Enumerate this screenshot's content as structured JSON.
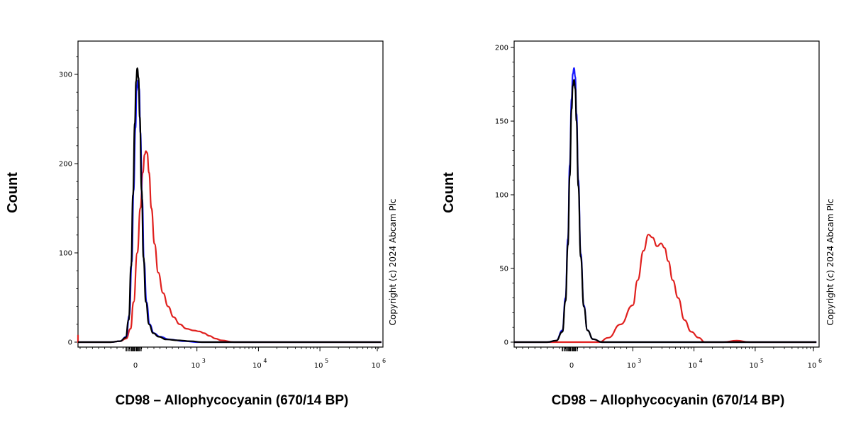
{
  "chart_data": [
    {
      "type": "line",
      "title": "",
      "xlabel": "CD98 – Allophycocyanin (670/14 BP)",
      "ylabel": "Count",
      "copyright": "Copyright (c) 2024 Abcam Plc",
      "x_scale": "biexponential",
      "xlim": [
        -1000,
        1000000
      ],
      "ylim": [
        0,
        340
      ],
      "xticks": [
        {
          "value": 0,
          "base": "0",
          "exp": ""
        },
        {
          "value": 1000,
          "base": "10",
          "exp": "3"
        },
        {
          "value": 10000,
          "base": "10",
          "exp": "4"
        },
        {
          "value": 100000,
          "base": "10",
          "exp": "5"
        },
        {
          "value": 1000000,
          "base": "10",
          "exp": "6"
        }
      ],
      "yticks": [
        0,
        100,
        200,
        300
      ],
      "legend": "none",
      "grid": false,
      "colors": {
        "red": "#e0201e",
        "blue": "#1a1aff",
        "black": "#000000"
      },
      "series": [
        {
          "color": "#e0201e",
          "x": [
            -1000,
            -950,
            -400,
            -250,
            -150,
            -80,
            -30,
            30,
            80,
            120,
            150,
            170,
            190,
            220,
            260,
            310,
            370,
            450,
            530,
            620,
            720,
            830,
            950,
            1100,
            1300,
            1600,
            2000,
            2500,
            4000,
            20000,
            1000000
          ],
          "y": [
            8,
            0,
            0,
            1,
            4,
            15,
            45,
            100,
            150,
            190,
            210,
            214,
            212,
            190,
            150,
            110,
            78,
            55,
            40,
            28,
            20,
            15,
            13,
            12,
            10,
            7,
            4,
            2,
            0,
            0,
            0
          ]
        },
        {
          "color": "#1a1aff",
          "x": [
            -1000,
            -400,
            -250,
            -150,
            -100,
            -60,
            -30,
            0,
            20,
            40,
            60,
            80,
            110,
            140,
            180,
            230,
            300,
            400,
            550,
            800,
            1000,
            1500,
            1000000
          ],
          "y": [
            0,
            0,
            1,
            6,
            30,
            90,
            170,
            240,
            282,
            293,
            284,
            235,
            160,
            90,
            45,
            20,
            10,
            6,
            3,
            1,
            0,
            0,
            0
          ]
        },
        {
          "color": "#000000",
          "x": [
            -1000,
            -400,
            -250,
            -160,
            -110,
            -70,
            -40,
            -10,
            10,
            30,
            50,
            70,
            100,
            130,
            170,
            220,
            290,
            380,
            500,
            700,
            900,
            1200,
            1000000
          ],
          "y": [
            0,
            0,
            1,
            5,
            25,
            85,
            165,
            245,
            292,
            307,
            296,
            252,
            170,
            95,
            45,
            20,
            10,
            6,
            3,
            2,
            1,
            0,
            0
          ]
        }
      ]
    },
    {
      "type": "line",
      "title": "",
      "xlabel": "CD98 – Allophycocyanin (670/14 BP)",
      "ylabel": "Count",
      "copyright": "Copyright (c) 2024 Abcam Plc",
      "x_scale": "biexponential",
      "xlim": [
        -1000,
        1000000
      ],
      "ylim": [
        0,
        205
      ],
      "xticks": [
        {
          "value": 0,
          "base": "0",
          "exp": ""
        },
        {
          "value": 1000,
          "base": "10",
          "exp": "3"
        },
        {
          "value": 10000,
          "base": "10",
          "exp": "4"
        },
        {
          "value": 100000,
          "base": "10",
          "exp": "5"
        },
        {
          "value": 1000000,
          "base": "10",
          "exp": "6"
        }
      ],
      "yticks": [
        0,
        50,
        100,
        150,
        200
      ],
      "legend": "none",
      "grid": false,
      "colors": {
        "red": "#e0201e",
        "blue": "#1a1aff",
        "black": "#000000"
      },
      "series": [
        {
          "color": "#e0201e",
          "x": [
            -1000,
            300,
            450,
            600,
            800,
            1000,
            1200,
            1500,
            1800,
            2100,
            2500,
            2900,
            3300,
            3800,
            4500,
            5500,
            7000,
            9000,
            12000,
            15000,
            20000,
            30000,
            50000,
            80000,
            1000000
          ],
          "y": [
            0,
            0,
            0,
            3,
            12,
            25,
            42,
            62,
            73,
            71,
            65,
            67,
            64,
            55,
            42,
            30,
            15,
            7,
            3,
            0,
            0,
            0,
            1,
            0,
            0
          ]
        },
        {
          "color": "#1a1aff",
          "x": [
            -1000,
            -400,
            -250,
            -150,
            -100,
            -60,
            -30,
            0,
            20,
            40,
            60,
            80,
            110,
            150,
            200,
            260,
            350,
            500,
            800,
            1000000
          ],
          "y": [
            0,
            0,
            1,
            8,
            30,
            70,
            120,
            165,
            182,
            186,
            180,
            155,
            110,
            60,
            25,
            8,
            2,
            0,
            0,
            0
          ]
        },
        {
          "color": "#000000",
          "x": [
            -1000,
            -400,
            -250,
            -150,
            -100,
            -60,
            -30,
            0,
            20,
            40,
            60,
            80,
            110,
            150,
            200,
            260,
            350,
            500,
            800,
            1000000
          ],
          "y": [
            0,
            0,
            1,
            7,
            28,
            66,
            113,
            158,
            174,
            178,
            172,
            150,
            106,
            58,
            24,
            8,
            2,
            0,
            0,
            0
          ]
        }
      ]
    }
  ]
}
